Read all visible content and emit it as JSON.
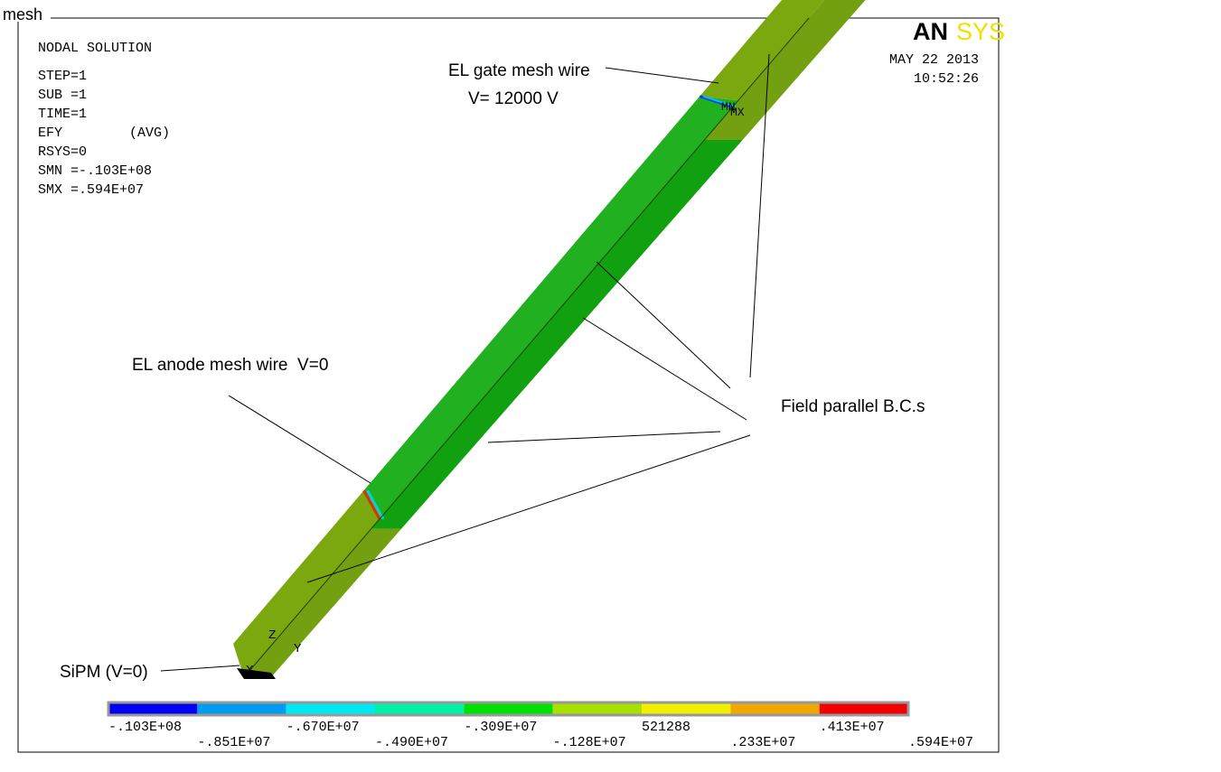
{
  "title": "mesh",
  "logo": [
    "AN",
    "SYS"
  ],
  "info": [
    "NODAL SOLUTION",
    "STEP=1",
    "SUB =1",
    "TIME=1",
    "EFY",
    "(AVG)",
    "RSYS=0",
    "SMN =-.103E+08",
    "SMX =.594E+07"
  ],
  "date": "MAY 22 2013",
  "time": "10:52:26",
  "annotations": {
    "gate": "EL gate mesh wire",
    "gate_voltage": "V= 12000 V",
    "anode": "EL anode mesh wire  V=0",
    "field": "Field parallel B.C.s",
    "sipm": "SiPM (V=0)"
  },
  "model_labels": {
    "min": "MN",
    "max": "MX",
    "x": "X",
    "y": "Y",
    "z": "Z"
  },
  "legend": {
    "labels": [
      "-.103E+08",
      "-.851E+07",
      "-.670E+07",
      "-.490E+07",
      "-.309E+07",
      "-.128E+07",
      "521288",
      ".233E+07",
      ".413E+07",
      ".594E+07"
    ]
  }
}
